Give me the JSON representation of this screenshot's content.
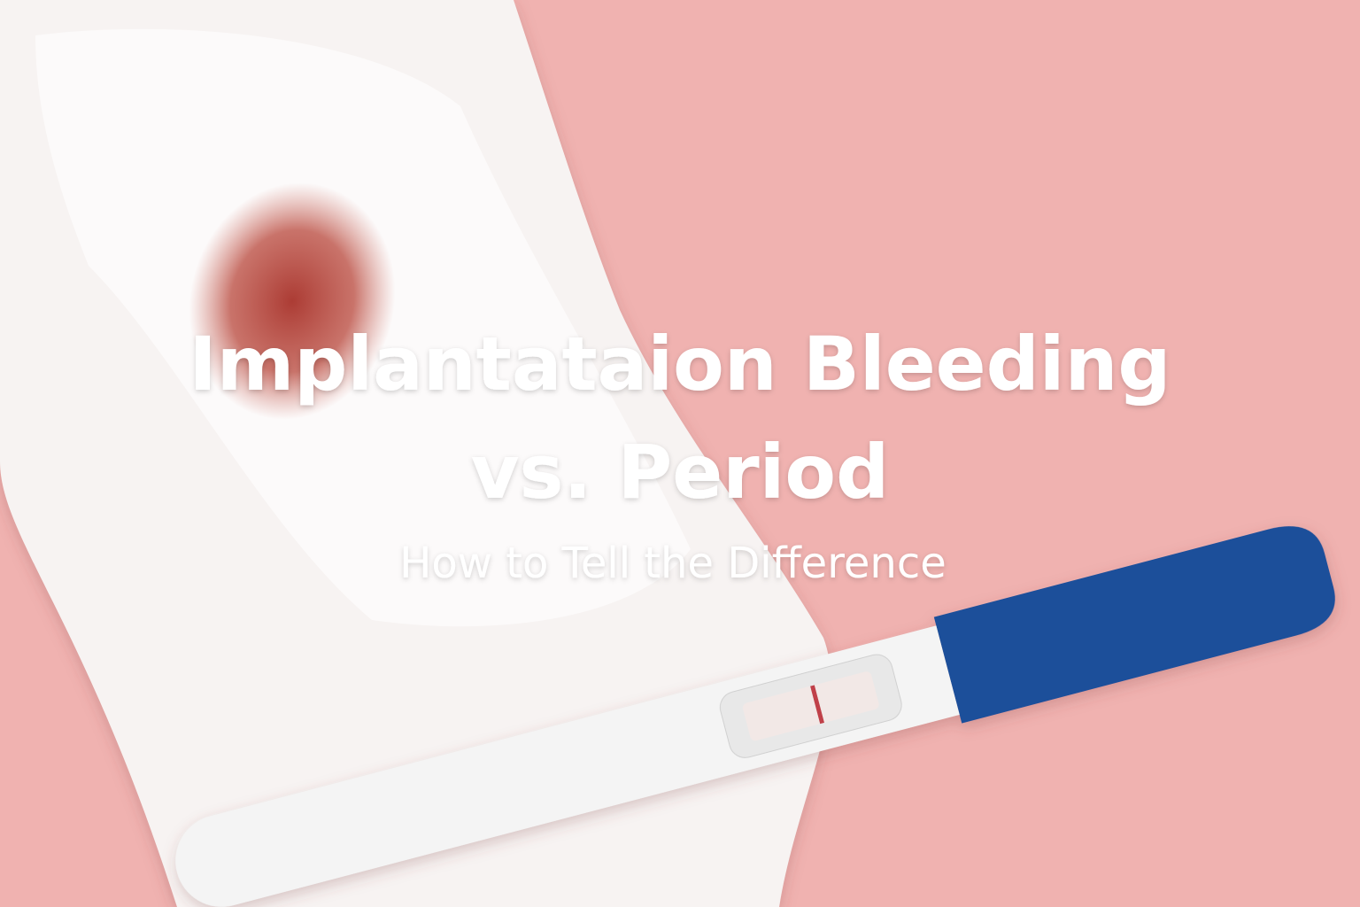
{
  "title": {
    "line1": "Implantataion Bleeding",
    "line2": "vs. Period"
  },
  "subtitle": "How to Tell the Difference"
}
